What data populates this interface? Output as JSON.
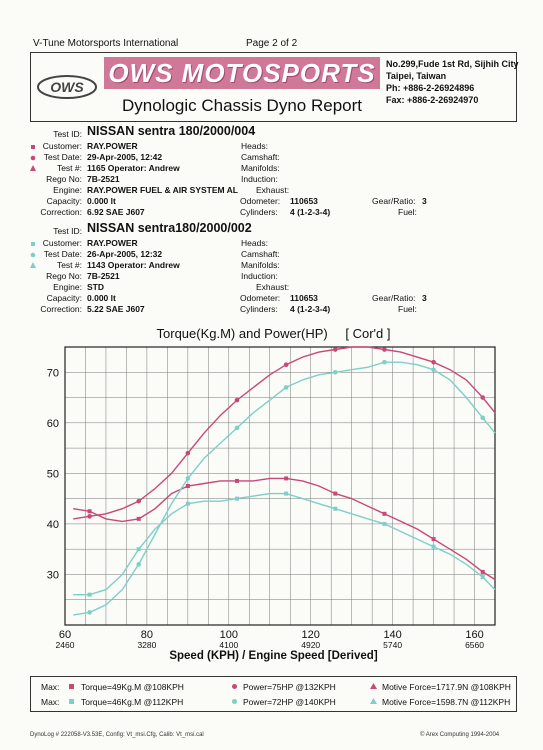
{
  "header": {
    "company": "V-Tune Motorsports International",
    "page": "Page 2 of 2"
  },
  "banner": {
    "brand": "OWS MOTOSPORTS",
    "title": "Dynologic Chassis Dyno Report",
    "logo_text": "OWS",
    "address": [
      "No.299,Fude 1st Rd, Sijhih City",
      "Taipei, Taiwan",
      "Ph: +886-2-26924896",
      "Fax: +886-2-26924970"
    ]
  },
  "runs": [
    {
      "color": "#c84878",
      "test_id": "NISSAN sentra 180/2000/004",
      "customer": "RAY.POWER",
      "test_date": "29-Apr-2005, 12:42",
      "test_no": "1165 Operator: Andrew",
      "rego": "7B-2521",
      "engine": "RAY.POWER FUEL & AIR SYSTEM AL",
      "capacity": "0.000 lt",
      "correction": "6.92 SAE J607",
      "odometer": "110653",
      "cylinders": "4 (1-2-3-4)",
      "gear_ratio": "3"
    },
    {
      "color": "#7cd0c8",
      "test_id": "NISSAN sentra180/2000/002",
      "customer": "RAY.POWER",
      "test_date": "26-Apr-2005, 12:32",
      "test_no": "1143 Operator: Andrew",
      "rego": "7B-2521",
      "engine": "STD",
      "capacity": "0.000 lt",
      "correction": "5.22 SAE J607",
      "odometer": "110653",
      "cylinders": "4 (1-2-3-4)",
      "gear_ratio": "3"
    }
  ],
  "labels": {
    "test_id": "Test ID:",
    "customer": "Customer:",
    "test_date": "Test Date:",
    "test_no": "Test #:",
    "rego": "Rego No:",
    "engine": "Engine:",
    "capacity": "Capacity:",
    "correction": "Correction:",
    "heads": "Heads:",
    "camshaft": "Camshaft:",
    "manifolds": "Manifolds:",
    "induction": "Induction:",
    "exhaust": "Exhaust:",
    "odometer": "Odometer:",
    "cylinders": "Cylinders:",
    "gear_ratio": "Gear/Ratio:",
    "fuel": "Fuel:"
  },
  "legend": {
    "row1": {
      "max": "Max:",
      "torque": "Torque=49Kg.M @108KPH",
      "power": "Power=75HP @132KPH",
      "force": "Motive Force=1717.9N @108KPH"
    },
    "row2": {
      "torque": "Torque=46Kg.M @112KPH",
      "power": "Power=72HP @140KPH",
      "force": "Motive Force=1598.7N @112KPH"
    }
  },
  "footer": {
    "left": "DynoLog # 222058-V3.53E, Config: Vt_msi.Cfg, Calib: Vt_msi.cal",
    "right": "© Arex Computing 1994-2004"
  },
  "chart_data": {
    "type": "line",
    "title": "Torque(Kg.M) and Power(HP)",
    "title_suffix": "[ Cor'd ]",
    "xlabel": "Speed (KPH) / Engine Speed [Derived]",
    "xlim": [
      60,
      165
    ],
    "ylim": [
      20,
      75
    ],
    "x_ticks": [
      60,
      80,
      100,
      120,
      140,
      160
    ],
    "x_rpm_ticks": [
      "2460",
      "3280",
      "4100",
      "4920",
      "5740",
      "6560"
    ],
    "y_ticks": [
      30,
      40,
      50,
      60,
      70
    ],
    "grid": true,
    "series": [
      {
        "name": "Power",
        "run": 0,
        "color": "#c84878",
        "x": [
          62,
          66,
          70,
          74,
          78,
          82,
          86,
          90,
          94,
          98,
          102,
          106,
          110,
          114,
          118,
          122,
          126,
          130,
          134,
          138,
          142,
          146,
          150,
          154,
          158,
          162,
          165
        ],
        "values": [
          41,
          41.5,
          42,
          43,
          44.5,
          47,
          50,
          54,
          58,
          61.5,
          64.5,
          67,
          69.5,
          71.5,
          73,
          74,
          74.5,
          75,
          75,
          74.5,
          74,
          73,
          72,
          70.5,
          68.5,
          65,
          62
        ]
      },
      {
        "name": "Torque",
        "run": 0,
        "color": "#c84878",
        "x": [
          62,
          66,
          70,
          74,
          78,
          82,
          86,
          90,
          94,
          98,
          102,
          106,
          110,
          114,
          118,
          122,
          126,
          130,
          134,
          138,
          142,
          146,
          150,
          154,
          158,
          162,
          165
        ],
        "values": [
          43,
          42.5,
          41,
          40.5,
          41,
          43,
          46,
          47.5,
          48,
          48.5,
          48.5,
          48.5,
          49,
          49,
          48.5,
          47.5,
          46,
          45,
          43.5,
          42,
          40.5,
          39,
          37,
          35,
          33,
          30.5,
          29
        ]
      },
      {
        "name": "Power",
        "run": 1,
        "color": "#7cd0c8",
        "x": [
          62,
          66,
          70,
          74,
          78,
          82,
          86,
          90,
          94,
          98,
          102,
          106,
          110,
          114,
          118,
          122,
          126,
          130,
          134,
          138,
          142,
          146,
          150,
          154,
          158,
          162,
          165
        ],
        "values": [
          22,
          22.5,
          24,
          27,
          32,
          38,
          44,
          49,
          53,
          56,
          59,
          62,
          64.5,
          67,
          68.5,
          69.5,
          70,
          70.5,
          71,
          72,
          72,
          71.5,
          70.5,
          68.5,
          65,
          61,
          58
        ]
      },
      {
        "name": "Torque",
        "run": 1,
        "color": "#7cd0c8",
        "x": [
          62,
          66,
          70,
          74,
          78,
          82,
          86,
          90,
          94,
          98,
          102,
          106,
          110,
          114,
          118,
          122,
          126,
          130,
          134,
          138,
          142,
          146,
          150,
          154,
          158,
          162,
          165
        ],
        "values": [
          26,
          26,
          27,
          30,
          35,
          39,
          42,
          44,
          44.5,
          44.5,
          45,
          45.5,
          46,
          46,
          45,
          44,
          43,
          42,
          41,
          40,
          38.5,
          37,
          35.5,
          34,
          32,
          29.5,
          27
        ]
      }
    ]
  }
}
